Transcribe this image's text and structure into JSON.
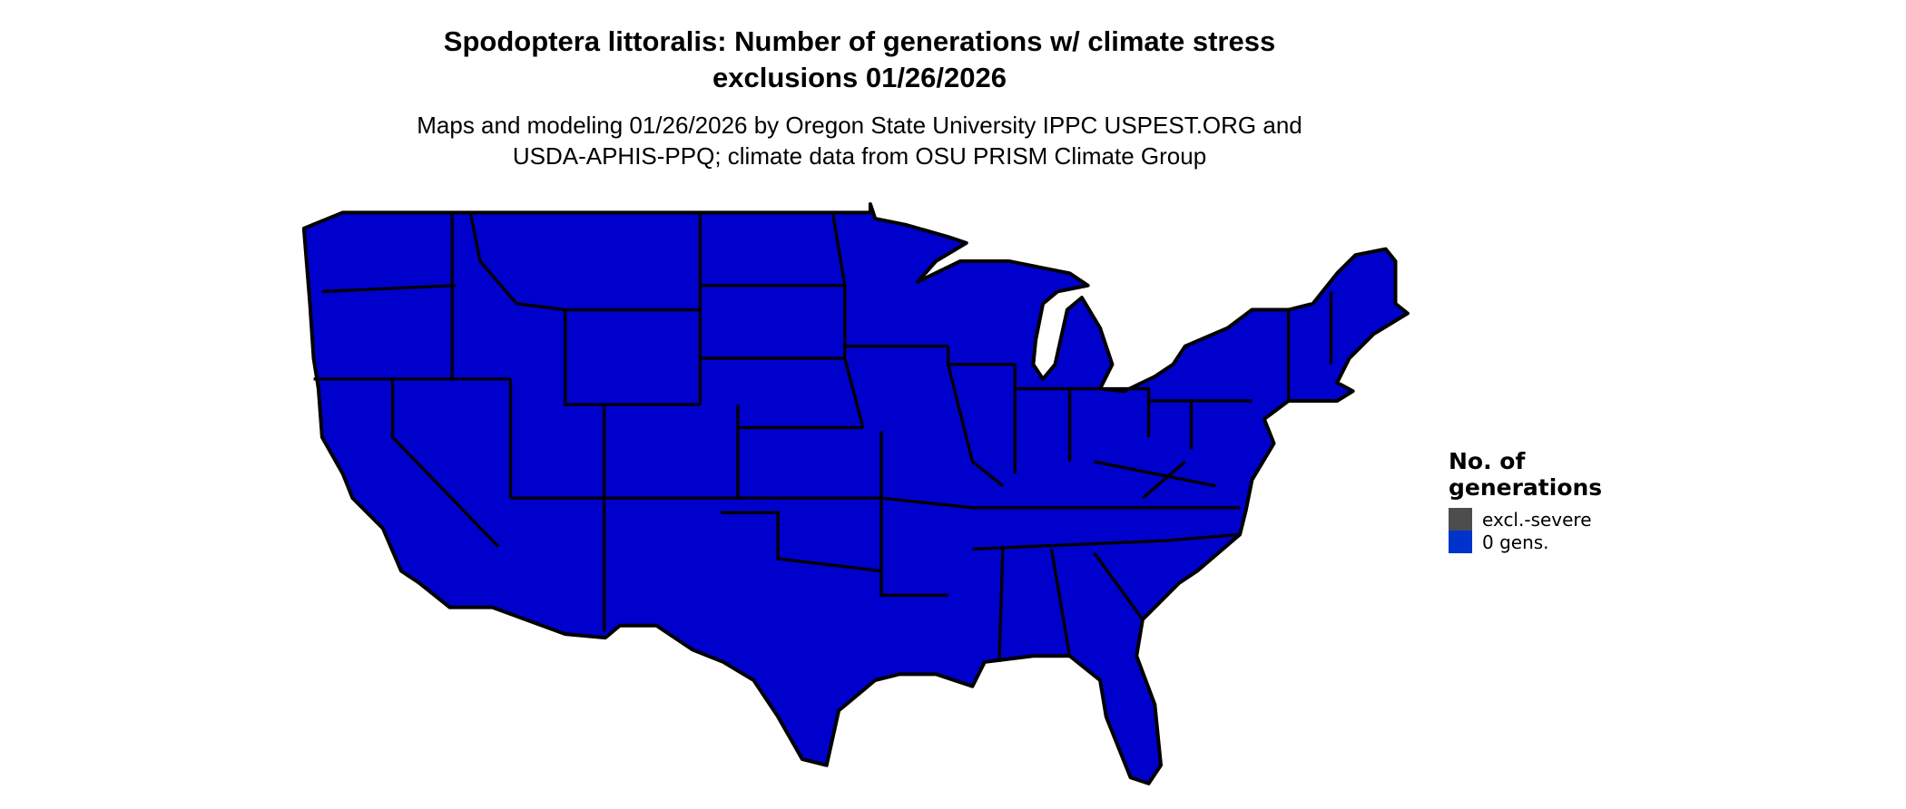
{
  "title": {
    "line1": "Spodoptera littoralis: Number of generations w/ climate stress",
    "line2": "exclusions 01/26/2026"
  },
  "subtitle": {
    "line1": "Maps and modeling 01/26/2026 by Oregon State University IPPC USPEST.ORG and",
    "line2": "USDA-APHIS-PPQ; climate data from OSU PRISM Climate Group"
  },
  "map": {
    "region": "Contiguous United States",
    "fill_color": "#0000CC",
    "border_color": "#000000"
  },
  "legend": {
    "title_line1": "No. of",
    "title_line2": "generations",
    "items": [
      {
        "label": "excl.-severe",
        "color": "#4D4D4D"
      },
      {
        "label": "0 gens.",
        "color": "#0033CC"
      }
    ]
  }
}
